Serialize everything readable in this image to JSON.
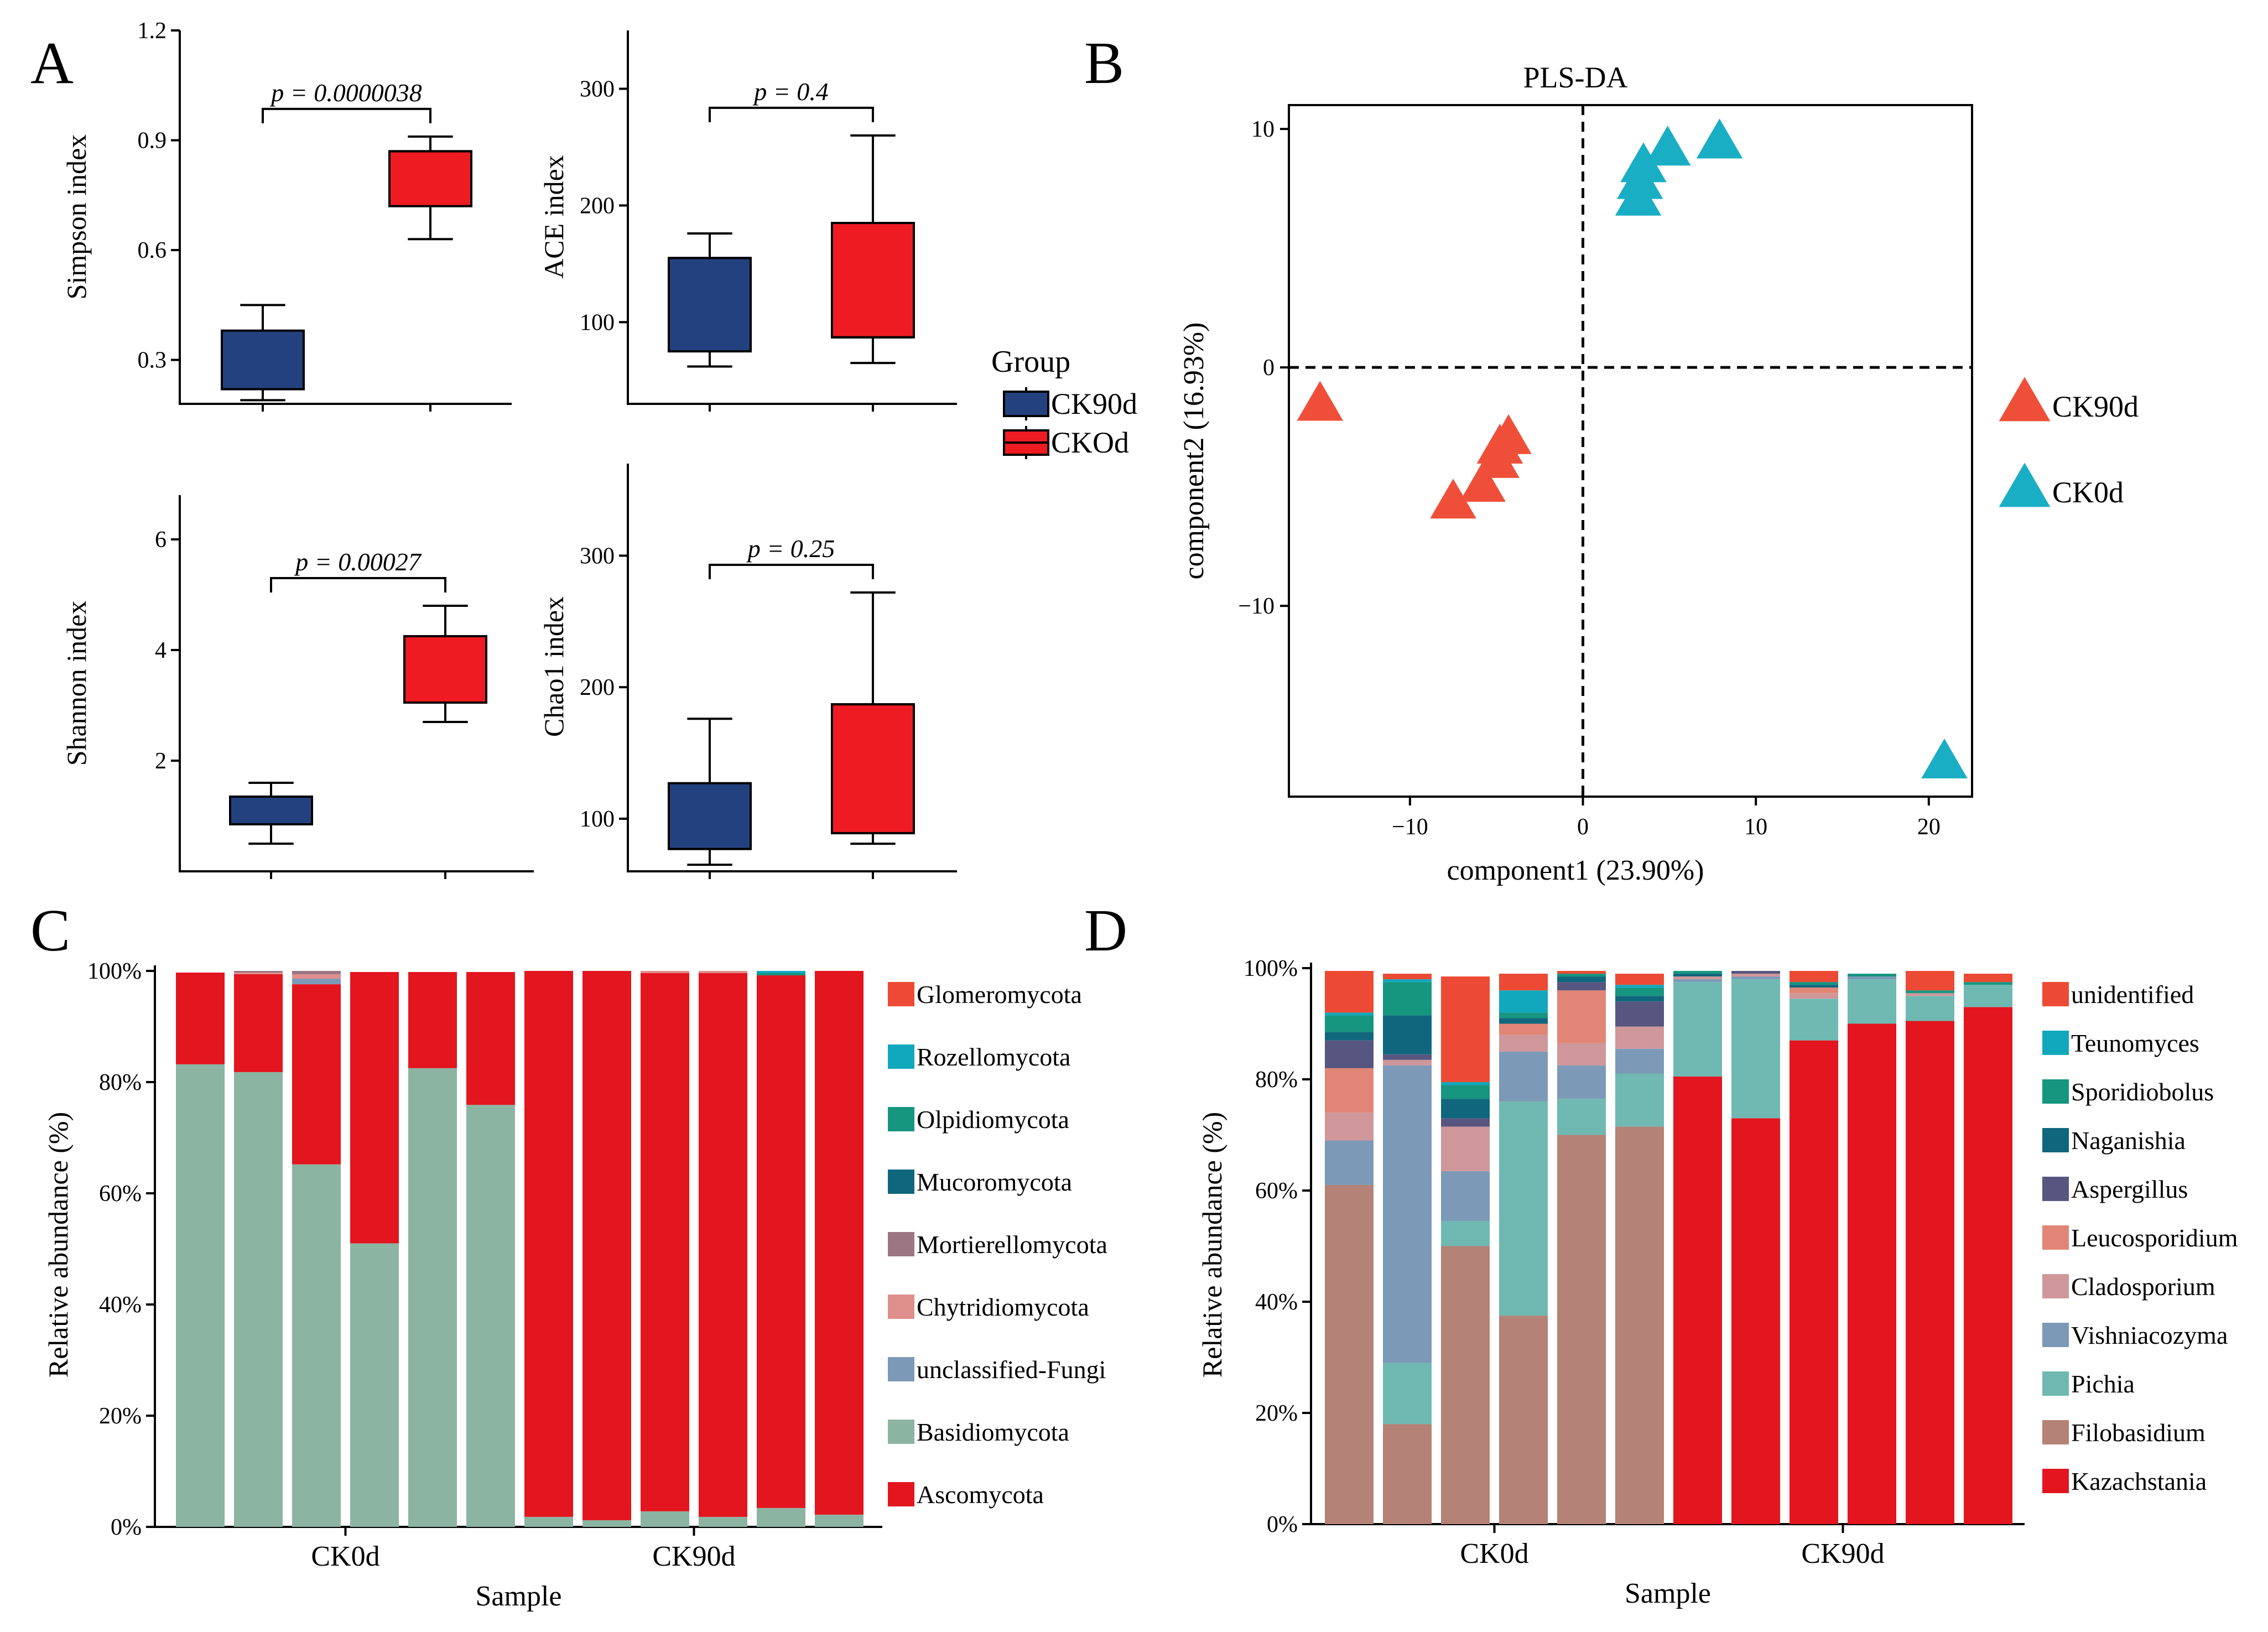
{
  "panel_labels": [
    "A",
    "B",
    "C",
    "D"
  ],
  "group_legend": {
    "title": "Group",
    "entries": [
      {
        "label": "CK90d",
        "color": "#24417f"
      },
      {
        "label": "CKOd",
        "color": "#ee1c22"
      }
    ]
  },
  "chart_data": [
    {
      "id": "simpson",
      "type": "box",
      "ylabel": "Simpson index",
      "ylim": [
        0.18,
        1.2
      ],
      "yticks": [
        "0.3",
        "0.6",
        "0.9",
        "1.2"
      ],
      "pvalue": "p = 0.0000038",
      "groups": [
        {
          "name": "CK90d",
          "color": "#24417f",
          "min": 0.19,
          "q1": 0.22,
          "median": 0.22,
          "q3": 0.38,
          "max": 0.45
        },
        {
          "name": "CKOd",
          "color": "#ee1c22",
          "min": 0.63,
          "q1": 0.72,
          "median": 0.87,
          "q3": 0.87,
          "max": 0.91
        }
      ]
    },
    {
      "id": "ace",
      "type": "box",
      "ylabel": "ACE index",
      "ylim": [
        30,
        350
      ],
      "yticks": [
        "100",
        "200",
        "300"
      ],
      "pvalue": "p = 0.4",
      "groups": [
        {
          "name": "CK90d",
          "color": "#24417f",
          "min": 62,
          "q1": 75,
          "median": 155,
          "q3": 155,
          "max": 176
        },
        {
          "name": "CKOd",
          "color": "#ee1c22",
          "min": 65,
          "q1": 87,
          "median": 87,
          "q3": 185,
          "max": 260
        }
      ]
    },
    {
      "id": "shannon",
      "type": "box",
      "ylabel": "Shannon index",
      "ylim": [
        0,
        6.8
      ],
      "yticks": [
        "2",
        "4",
        "6"
      ],
      "pvalue": "p = 0.00027",
      "groups": [
        {
          "name": "CK90d",
          "color": "#24417f",
          "min": 0.5,
          "q1": 0.85,
          "median": 1.35,
          "q3": 1.35,
          "max": 1.6
        },
        {
          "name": "CKOd",
          "color": "#ee1c22",
          "min": 2.7,
          "q1": 3.05,
          "median": 3.05,
          "q3": 4.25,
          "max": 4.8
        }
      ]
    },
    {
      "id": "chao1",
      "type": "box",
      "ylabel": "Chao1 index",
      "ylim": [
        60,
        370
      ],
      "yticks": [
        "100",
        "200",
        "300"
      ],
      "pvalue": "p = 0.25",
      "groups": [
        {
          "name": "CK90d",
          "color": "#24417f",
          "min": 65,
          "q1": 77,
          "median": 77,
          "q3": 127,
          "max": 176
        },
        {
          "name": "CKOd",
          "color": "#ee1c22",
          "min": 81,
          "q1": 89,
          "median": 187,
          "q3": 187,
          "max": 272
        }
      ]
    },
    {
      "id": "plsda",
      "type": "scatter",
      "title": "PLS-DA",
      "xlabel": "component1 (23.90%)",
      "ylabel": "component2 (16.93%)",
      "xlim": [
        -17,
        22.5
      ],
      "ylim": [
        -18,
        11
      ],
      "xticks": [
        {
          "v": -10,
          "label": "−10"
        },
        {
          "v": 0,
          "label": "0"
        },
        {
          "v": 10,
          "label": "10"
        },
        {
          "v": 20,
          "label": "20"
        }
      ],
      "yticks": [
        {
          "v": 10,
          "label": "10"
        },
        {
          "v": 0,
          "label": "0"
        },
        {
          "v": -10,
          "label": "−10"
        }
      ],
      "series": [
        {
          "name": "CK90d",
          "color": "#ef4f39",
          "points": [
            [
              -15.2,
              -1.6
            ],
            [
              -7.5,
              -5.7
            ],
            [
              -5.8,
              -5.0
            ],
            [
              -5.0,
              -4.0
            ],
            [
              -4.8,
              -3.4
            ],
            [
              -4.3,
              -3.0
            ]
          ]
        },
        {
          "name": "CK0d",
          "color": "#19aec4",
          "points": [
            [
              3.2,
              7.0
            ],
            [
              3.3,
              7.7
            ],
            [
              3.5,
              8.4
            ],
            [
              4.9,
              9.1
            ],
            [
              7.9,
              9.4
            ],
            [
              20.9,
              -16.6
            ]
          ]
        }
      ]
    },
    {
      "id": "phylum",
      "type": "stacked-bar",
      "ylabel": "Relative abundance (%)",
      "xlabel": "Sample",
      "yticks": [
        "0%",
        "20%",
        "40%",
        "60%",
        "80%",
        "100%"
      ],
      "group_labels": [
        "CK0d",
        "CK90d"
      ],
      "legend": [
        {
          "name": "Glomeromycota",
          "color": "#ec4a34"
        },
        {
          "name": "Rozellomycota",
          "color": "#11a8bd"
        },
        {
          "name": "Olpidiomycota",
          "color": "#16957f"
        },
        {
          "name": "Mucoromycota",
          "color": "#10677d"
        },
        {
          "name": "Mortierellomycota",
          "color": "#9a7783"
        },
        {
          "name": "Chytridiomycota",
          "color": "#df8f8c"
        },
        {
          "name": "unclassified-Fungi",
          "color": "#7c99b7"
        },
        {
          "name": "Basidiomycota",
          "color": "#8cb4a3"
        },
        {
          "name": "Ascomycota",
          "color": "#e3151e"
        }
      ],
      "stack_order": [
        "Basidiomycota",
        "Ascomycota",
        "unclassified-Fungi",
        "Chytridiomycota",
        "Mortierellomycota",
        "Mucoromycota",
        "Olpidiomycota",
        "Rozellomycota",
        "Glomeromycota"
      ],
      "samples": [
        {
          "Basidiomycota": 83.2,
          "Ascomycota": 16.5
        },
        {
          "Basidiomycota": 81.8,
          "Ascomycota": 17.6,
          "Chytridiomycota": 0.3,
          "Mortierellomycota": 0.3
        },
        {
          "Basidiomycota": 65.2,
          "Ascomycota": 32.4,
          "unclassified-Fungi": 1.0,
          "Chytridiomycota": 0.8,
          "Mortierellomycota": 0.6
        },
        {
          "Basidiomycota": 51.0,
          "Ascomycota": 48.8
        },
        {
          "Basidiomycota": 82.5,
          "Ascomycota": 17.3
        },
        {
          "Basidiomycota": 75.9,
          "Ascomycota": 23.9
        },
        {
          "Ascomycota": 98.2,
          "Basidiomycota": 1.8
        },
        {
          "Ascomycota": 98.8,
          "Basidiomycota": 1.2
        },
        {
          "Ascomycota": 96.8,
          "Basidiomycota": 2.8,
          "Chytridiomycota": 0.4
        },
        {
          "Ascomycota": 97.8,
          "Basidiomycota": 1.8,
          "Chytridiomycota": 0.4
        },
        {
          "Ascomycota": 95.8,
          "Basidiomycota": 3.4,
          "Olpidiomycota": 0.4,
          "Rozellomycota": 0.4
        },
        {
          "Ascomycota": 97.8,
          "Basidiomycota": 2.2
        }
      ]
    },
    {
      "id": "genus",
      "type": "stacked-bar",
      "ylabel": "Relative abundance (%)",
      "xlabel": "Sample",
      "yticks": [
        "0%",
        "20%",
        "40%",
        "60%",
        "80%",
        "100%"
      ],
      "group_labels": [
        "CK0d",
        "CK90d"
      ],
      "legend": [
        {
          "name": "unidentified",
          "color": "#ec4a34"
        },
        {
          "name": "Teunomyces",
          "color": "#11a8bd"
        },
        {
          "name": "Sporidiobolus",
          "color": "#16957f"
        },
        {
          "name": "Naganishia",
          "color": "#10677d"
        },
        {
          "name": "Aspergillus",
          "color": "#565680"
        },
        {
          "name": "Leucosporidium",
          "color": "#e18676"
        },
        {
          "name": "Cladosporium",
          "color": "#cf979a"
        },
        {
          "name": "Vishniacozyma",
          "color": "#7c99b7"
        },
        {
          "name": "Pichia",
          "color": "#6fb9b2"
        },
        {
          "name": "Filobasidium",
          "color": "#b48276"
        },
        {
          "name": "Kazachstania",
          "color": "#e3151e"
        }
      ],
      "stack_order": [
        "Kazachstania",
        "Filobasidium",
        "Pichia",
        "Vishniacozyma",
        "Cladosporium",
        "Leucosporidium",
        "Aspergillus",
        "Naganishia",
        "Sporidiobolus",
        "Teunomyces",
        "unidentified"
      ],
      "samples": [
        {
          "Filobasidium": 61,
          "Vishniacozyma": 8,
          "Leucosporidium": 8,
          "unidentified": 7.5,
          "Cladosporium": 5,
          "Aspergillus": 5,
          "Sporidiobolus": 3,
          "Naganishia": 1.5,
          "Teunomyces": 0.5
        },
        {
          "Vishniacozyma": 53.5,
          "Filobasidium": 18,
          "Pichia": 11,
          "Naganishia": 7,
          "Sporidiobolus": 6,
          "Aspergillus": 1,
          "Cladosporium": 1,
          "unidentified": 1,
          "Teunomyces": 0.5
        },
        {
          "Filobasidium": 50,
          "unidentified": 19,
          "Vishniacozyma": 9,
          "Cladosporium": 8,
          "Pichia": 4.5,
          "Naganishia": 3.5,
          "Sporidiobolus": 2.5,
          "Aspergillus": 1.5,
          "Teunomyces": 0.5
        },
        {
          "Pichia": 38.5,
          "Filobasidium": 37.5,
          "Vishniacozyma": 9,
          "Teunomyces": 4,
          "unidentified": 3,
          "Cladosporium": 3,
          "Leucosporidium": 2,
          "Naganishia": 1,
          "Sporidiobolus": 1
        },
        {
          "Filobasidium": 70,
          "Leucosporidium": 9.5,
          "Pichia": 6.5,
          "Vishniacozyma": 6,
          "Cladosporium": 4,
          "Aspergillus": 1.5,
          "Naganishia": 1,
          "Sporidiobolus": 0.5,
          "unidentified": 0.5
        },
        {
          "Filobasidium": 71.5,
          "Pichia": 9.5,
          "Aspergillus": 4.5,
          "Vishniacozyma": 4.5,
          "Cladosporium": 4,
          "unidentified": 2,
          "Sporidiobolus": 1.5,
          "Naganishia": 1,
          "Teunomyces": 0.5
        },
        {
          "Kazachstania": 80.5,
          "Pichia": 17,
          "Vishniacozyma": 0.5,
          "Cladosporium": 0.5,
          "Naganishia": 0.5,
          "Sporidiobolus": 0.5
        },
        {
          "Kazachstania": 73,
          "Pichia": 25,
          "Vishniacozyma": 0.5,
          "Cladosporium": 0.5,
          "Aspergillus": 0.5
        },
        {
          "Kazachstania": 87,
          "Pichia": 7.5,
          "unidentified": 2,
          "Leucosporidium": 1,
          "Cladosporium": 1,
          "Sporidiobolus": 0.5,
          "Naganishia": 0.5
        },
        {
          "Kazachstania": 90,
          "Pichia": 8,
          "Vishniacozyma": 0.5,
          "Sporidiobolus": 0.5
        },
        {
          "Kazachstania": 90.5,
          "Pichia": 4.5,
          "unidentified": 3.5,
          "Cladosporium": 0.5,
          "Sporidiobolus": 0.5
        },
        {
          "Kazachstania": 93,
          "Pichia": 4,
          "unidentified": 1.5,
          "Sporidiobolus": 0.5
        }
      ]
    }
  ]
}
